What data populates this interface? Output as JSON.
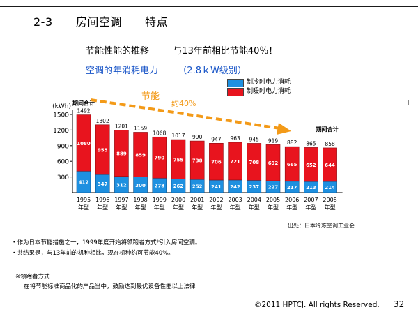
{
  "slide": {
    "title_number": "2-3",
    "title_main": "房间空调",
    "title_sub": "特点",
    "subtitle_1a": "节能性能的推移",
    "subtitle_1b": "与13年前相比节能40％！",
    "subtitle_2a": "空调的年消耗电力",
    "subtitle_2b": "（2.8ｋW级别）",
    "source": "出处：日本冷冻空调工业会",
    "notes": [
      "・作为日本节能措施之一，1999年度开始将领跑者方式*引入房间空调。",
      "・共结果是，与13年前的机种相比，现在机种约可节能40%。"
    ],
    "footnote_title": "※领跑者方式",
    "footnote_body": "在将节能标准商品化的产品当中，鼓励达到最优设备性能以上法律",
    "copyright": "©2011 HPTCJ. All rights Reserved.",
    "page_number": "32"
  },
  "colors": {
    "cooling": "#1e90e0",
    "heating": "#e8141e",
    "arrow": "#f39a18",
    "subtitle_blue": "#1a56c8"
  },
  "chart_data": {
    "type": "bar",
    "stacked": true,
    "title": "空调的年消耗电力",
    "ylabel": "(kWh)",
    "ylim": [
      0,
      1500
    ],
    "yticks": [
      300,
      600,
      900,
      1200,
      1500
    ],
    "grid": false,
    "legend_position": "top-right",
    "categories": [
      "1995",
      "1996",
      "1997",
      "1998",
      "1999",
      "2000",
      "2001",
      "2002",
      "2003",
      "2004",
      "2005",
      "2006",
      "2007",
      "2008"
    ],
    "category_suffix": "年型",
    "series": [
      {
        "name": "制冷时电力消耗",
        "values": [
          412,
          347,
          312,
          300,
          278,
          262,
          252,
          241,
          242,
          237,
          227,
          217,
          213,
          214
        ]
      },
      {
        "name": "制暖时电力消耗",
        "values": [
          1080,
          955,
          889,
          859,
          790,
          755,
          738,
          706,
          721,
          708,
          692,
          665,
          652,
          644
        ]
      }
    ],
    "totals": [
      1492,
      1302,
      1201,
      1159,
      1068,
      1017,
      990,
      947,
      963,
      945,
      919,
      882,
      865,
      858
    ],
    "annotations": {
      "total_label_start": "期间合计",
      "total_label_end": "期间合计",
      "arrow_label_a": "节能",
      "arrow_label_b": "约40%"
    }
  }
}
